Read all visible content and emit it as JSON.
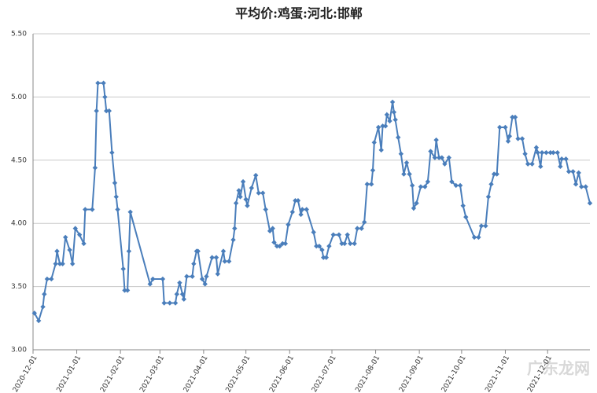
{
  "chart_data": {
    "type": "line",
    "title": "平均价:鸡蛋:河北:邯郸",
    "x": [
      "2020-12-02",
      "2020-12-05",
      "2020-12-08",
      "2020-12-09",
      "2020-12-11",
      "2020-12-14",
      "2020-12-17",
      "2020-12-18",
      "2020-12-20",
      "2020-12-22",
      "2020-12-24",
      "2020-12-27",
      "2020-12-29",
      "2020-12-31",
      "2021-01-03",
      "2021-01-06",
      "2021-01-07",
      "2021-01-12",
      "2021-01-14",
      "2021-01-15",
      "2021-01-16",
      "2021-01-20",
      "2021-01-21",
      "2021-01-22",
      "2021-01-24",
      "2021-01-26",
      "2021-01-28",
      "2021-01-29",
      "2021-01-30",
      "2021-02-03",
      "2021-02-04",
      "2021-02-06",
      "2021-02-07",
      "2021-02-08",
      "2021-02-22",
      "2021-02-24",
      "2021-03-03",
      "2021-03-04",
      "2021-03-08",
      "2021-03-12",
      "2021-03-13",
      "2021-03-15",
      "2021-03-17",
      "2021-03-18",
      "2021-03-20",
      "2021-03-24",
      "2021-03-25",
      "2021-03-27",
      "2021-03-28",
      "2021-03-31",
      "2021-04-02",
      "2021-04-03",
      "2021-04-07",
      "2021-04-10",
      "2021-04-11",
      "2021-04-15",
      "2021-04-16",
      "2021-04-19",
      "2021-04-22",
      "2021-04-23",
      "2021-04-24",
      "2021-04-26",
      "2021-04-27",
      "2021-04-29",
      "2021-05-01",
      "2021-05-02",
      "2021-05-05",
      "2021-05-08",
      "2021-05-10",
      "2021-05-13",
      "2021-05-15",
      "2021-05-18",
      "2021-05-20",
      "2021-05-21",
      "2021-05-23",
      "2021-05-25",
      "2021-05-27",
      "2021-05-29",
      "2021-05-31",
      "2021-06-03",
      "2021-06-05",
      "2021-06-07",
      "2021-06-09",
      "2021-06-10",
      "2021-06-13",
      "2021-06-18",
      "2021-06-20",
      "2021-06-22",
      "2021-06-24",
      "2021-06-25",
      "2021-06-27",
      "2021-06-29",
      "2021-07-02",
      "2021-07-06",
      "2021-07-08",
      "2021-07-10",
      "2021-07-12",
      "2021-07-14",
      "2021-07-17",
      "2021-07-19",
      "2021-07-22",
      "2021-07-24",
      "2021-07-26",
      "2021-07-29",
      "2021-07-30",
      "2021-07-31",
      "2021-08-03",
      "2021-08-05",
      "2021-08-06",
      "2021-08-08",
      "2021-08-09",
      "2021-08-11",
      "2021-08-13",
      "2021-08-14",
      "2021-08-15",
      "2021-08-17",
      "2021-08-19",
      "2021-08-21",
      "2021-08-23",
      "2021-08-25",
      "2021-08-27",
      "2021-08-28",
      "2021-08-30",
      "2021-09-02",
      "2021-09-05",
      "2021-09-07",
      "2021-09-09",
      "2021-09-12",
      "2021-09-13",
      "2021-09-15",
      "2021-09-17",
      "2021-09-19",
      "2021-09-22",
      "2021-09-24",
      "2021-09-27",
      "2021-09-30",
      "2021-10-02",
      "2021-10-04",
      "2021-10-10",
      "2021-10-13",
      "2021-10-15",
      "2021-10-18",
      "2021-10-20",
      "2021-10-22",
      "2021-10-24",
      "2021-10-26",
      "2021-10-28",
      "2021-11-01",
      "2021-11-03",
      "2021-11-04",
      "2021-11-06",
      "2021-11-08",
      "2021-11-10",
      "2021-11-13",
      "2021-11-15",
      "2021-11-17",
      "2021-11-20",
      "2021-11-23",
      "2021-11-24",
      "2021-11-26",
      "2021-11-27",
      "2021-11-30",
      "2021-12-03",
      "2021-12-05",
      "2021-12-08",
      "2021-12-10",
      "2021-12-11",
      "2021-12-14",
      "2021-12-16",
      "2021-12-19",
      "2021-12-21",
      "2021-12-23",
      "2021-12-25",
      "2021-12-28",
      "2021-12-31"
    ],
    "series": [
      {
        "name": "平均价:鸡蛋:河北:邯郸",
        "color": "#4a7ebb",
        "values": [
          3.29,
          3.23,
          3.34,
          3.44,
          3.56,
          3.56,
          3.68,
          3.78,
          3.68,
          3.68,
          3.89,
          3.79,
          3.68,
          3.96,
          3.91,
          3.84,
          4.11,
          4.11,
          4.44,
          4.89,
          5.11,
          5.11,
          5.0,
          4.89,
          4.89,
          4.56,
          4.32,
          4.21,
          4.11,
          3.64,
          3.47,
          3.47,
          3.78,
          4.09,
          3.52,
          3.56,
          3.56,
          3.37,
          3.37,
          3.37,
          3.44,
          3.53,
          3.44,
          3.4,
          3.58,
          3.58,
          3.68,
          3.78,
          3.78,
          3.56,
          3.52,
          3.58,
          3.73,
          3.73,
          3.6,
          3.78,
          3.7,
          3.7,
          3.87,
          3.96,
          4.16,
          4.26,
          4.21,
          4.33,
          4.19,
          4.14,
          4.28,
          4.38,
          4.24,
          4.24,
          4.11,
          3.94,
          3.96,
          3.85,
          3.82,
          3.82,
          3.84,
          3.84,
          3.99,
          4.09,
          4.18,
          4.18,
          4.07,
          4.11,
          4.11,
          3.93,
          3.82,
          3.82,
          3.79,
          3.73,
          3.73,
          3.82,
          3.91,
          3.91,
          3.84,
          3.84,
          3.91,
          3.84,
          3.84,
          3.96,
          3.96,
          4.01,
          4.31,
          4.31,
          4.42,
          4.64,
          4.76,
          4.58,
          4.77,
          4.77,
          4.86,
          4.81,
          4.96,
          4.88,
          4.82,
          4.68,
          4.55,
          4.39,
          4.48,
          4.39,
          4.3,
          4.12,
          4.16,
          4.29,
          4.29,
          4.33,
          4.57,
          4.52,
          4.66,
          4.52,
          4.52,
          4.47,
          4.52,
          4.33,
          4.3,
          4.3,
          4.14,
          4.05,
          3.89,
          3.89,
          3.98,
          3.98,
          4.21,
          4.31,
          4.39,
          4.39,
          4.76,
          4.76,
          4.65,
          4.69,
          4.84,
          4.84,
          4.67,
          4.67,
          4.55,
          4.47,
          4.47,
          4.6,
          4.56,
          4.45,
          4.56,
          4.56,
          4.56,
          4.56,
          4.56,
          4.45,
          4.51,
          4.51,
          4.41,
          4.41,
          4.31,
          4.4,
          4.29,
          4.29,
          4.16
        ]
      }
    ],
    "xlim": [
      "2020-12-01",
      "2021-12-31"
    ],
    "xticks": [
      "2020-12-01",
      "2021-01-01",
      "2021-02-01",
      "2021-03-01",
      "2021-04-01",
      "2021-05-01",
      "2021-06-01",
      "2021-07-01",
      "2021-08-01",
      "2021-09-01",
      "2021-10-01",
      "2021-11-01",
      "2021-12-01"
    ],
    "ylim": [
      3,
      5.5
    ],
    "yticks": [
      {
        "value": 3,
        "label": "3.00"
      },
      {
        "value": 3.5,
        "label": "3.50"
      },
      {
        "value": 4,
        "label": "4.00"
      },
      {
        "value": 4.5,
        "label": "4.50"
      },
      {
        "value": 5,
        "label": "5.00"
      },
      {
        "value": 5.5,
        "label": "5.50"
      }
    ],
    "grid": true
  },
  "watermark": "广东龙网"
}
